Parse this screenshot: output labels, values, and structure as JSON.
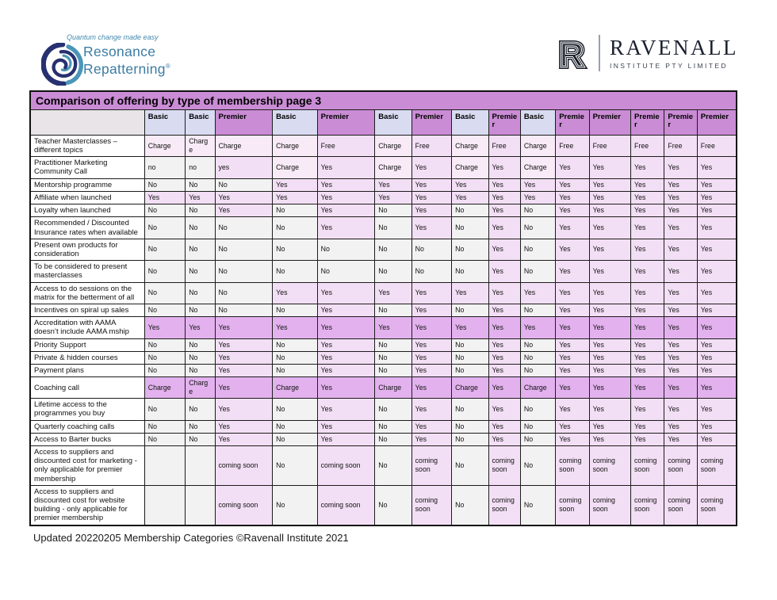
{
  "logo_left": {
    "tagline": "Quantum change made easy",
    "name_line1": "Resonance",
    "name_line2": "Repatterning",
    "registered_mark": "®",
    "spiral_icon": "spiral-swirl",
    "color_teal": "#4a96b8",
    "color_navy": "#273070",
    "color_text": "#3c7ba3"
  },
  "logo_right": {
    "monogram": "R",
    "name": "RAVENALL",
    "subtitle": "INSTITUTE PTY LIMITED",
    "color_ink": "#1b2130"
  },
  "colors": {
    "title_bg": "#ca8cd5",
    "header_empty_bg": "#e8e4e7",
    "header_basic_bg": "#d9dcf1",
    "header_premier_bg": "#ca8cd5",
    "cell_no_bg": "#f3f2f2",
    "cell_yes_bg": "#f3dff5",
    "cell_charge_bg": "#f8ebf7",
    "cell_highlight_bg": "#e3b2ee"
  },
  "table": {
    "title": "Comparison of offering by type of membership page 3",
    "columns": [
      {
        "label": "Basic",
        "type": "basic"
      },
      {
        "label": "Basic",
        "type": "basic"
      },
      {
        "label": "Premier",
        "type": "premier"
      },
      {
        "label": "Basic",
        "type": "basic"
      },
      {
        "label": "Premier",
        "type": "premier"
      },
      {
        "label": "Basic",
        "type": "basic"
      },
      {
        "label": "Premier",
        "type": "premier"
      },
      {
        "label": "Basic",
        "type": "basic"
      },
      {
        "label": "Premier",
        "type": "premier"
      },
      {
        "label": "Basic",
        "type": "basic"
      },
      {
        "label": "Premier",
        "type": "premier"
      },
      {
        "label": "Premier",
        "type": "premier"
      },
      {
        "label": "Premier",
        "type": "premier"
      },
      {
        "label": "Premier",
        "type": "premier"
      },
      {
        "label": "Premier",
        "type": "premier"
      }
    ],
    "rows": [
      {
        "label": "Teacher Masterclasses – different topics",
        "highlight": false,
        "values": [
          "Charge",
          "Charge",
          "Charge",
          "Charge",
          "Free",
          "Charge",
          "Free",
          "Charge",
          "Free",
          "Charge",
          "Free",
          "Free",
          "Free",
          "Free",
          "Free"
        ]
      },
      {
        "label": "Practitioner Marketing Community Call",
        "highlight": false,
        "values": [
          "no",
          "no",
          "yes",
          "Charge",
          "Yes",
          "Charge",
          "Yes",
          "Charge",
          "Yes",
          "Charge",
          "Yes",
          "Yes",
          "Yes",
          "Yes",
          "Yes"
        ]
      },
      {
        "label": "Mentorship programme",
        "highlight": false,
        "values": [
          "No",
          "No",
          "No",
          "Yes",
          "Yes",
          "Yes",
          "Yes",
          "Yes",
          "Yes",
          "Yes",
          "Yes",
          "Yes",
          "Yes",
          "Yes",
          "Yes"
        ]
      },
      {
        "label": "Affiliate when launched",
        "highlight": false,
        "values": [
          "Yes",
          "Yes",
          "Yes",
          "Yes",
          "Yes",
          "Yes",
          "Yes",
          "Yes",
          "Yes",
          "Yes",
          "Yes",
          "Yes",
          "Yes",
          "Yes",
          "Yes"
        ]
      },
      {
        "label": "Loyalty when launched",
        "highlight": false,
        "values": [
          "No",
          "No",
          "Yes",
          "No",
          "Yes",
          "No",
          "Yes",
          "No",
          "Yes",
          "No",
          "Yes",
          "Yes",
          "Yes",
          "Yes",
          "Yes"
        ]
      },
      {
        "label": "Recommended / Discounted Insurance rates when available",
        "highlight": false,
        "values": [
          "No",
          "No",
          "No",
          "No",
          "Yes",
          "No",
          "Yes",
          "No",
          "Yes",
          "No",
          "Yes",
          "Yes",
          "Yes",
          "Yes",
          "Yes"
        ]
      },
      {
        "label": "Present own products for consideration",
        "highlight": false,
        "values": [
          "No",
          "No",
          "No",
          "No",
          "No",
          "No",
          "No",
          "No",
          "Yes",
          "No",
          "Yes",
          "Yes",
          "Yes",
          "Yes",
          "Yes"
        ]
      },
      {
        "label": "To be considered to present masterclasses",
        "highlight": false,
        "values": [
          "No",
          "No",
          "No",
          "No",
          "No",
          "No",
          "No",
          "No",
          "Yes",
          "No",
          "Yes",
          "Yes",
          "Yes",
          "Yes",
          "Yes"
        ]
      },
      {
        "label": "Access to do sessions on the matrix for the betterment of all",
        "highlight": false,
        "values": [
          "No",
          "No",
          "No",
          "Yes",
          "Yes",
          "Yes",
          "Yes",
          "Yes",
          "Yes",
          "Yes",
          "Yes",
          "Yes",
          "Yes",
          "Yes",
          "Yes"
        ]
      },
      {
        "label": "Incentives on spiral up sales",
        "highlight": false,
        "values": [
          "No",
          "No",
          "No",
          "No",
          "Yes",
          "No",
          "Yes",
          "No",
          "Yes",
          "No",
          "Yes",
          "Yes",
          "Yes",
          "Yes",
          "Yes"
        ]
      },
      {
        "label": "Accreditation with AAMA doesn’t include AAMA mship",
        "highlight": true,
        "values": [
          "Yes",
          "Yes",
          "Yes",
          "Yes",
          "Yes",
          "Yes",
          "Yes",
          "Yes",
          "Yes",
          "Yes",
          "Yes",
          "Yes",
          "Yes",
          "Yes",
          "Yes"
        ]
      },
      {
        "label": "Priority Support",
        "highlight": false,
        "values": [
          "No",
          "No",
          "Yes",
          "No",
          "Yes",
          "No",
          "Yes",
          "No",
          "Yes",
          "No",
          "Yes",
          "Yes",
          "Yes",
          "Yes",
          "Yes"
        ]
      },
      {
        "label": "Private & hidden courses",
        "highlight": false,
        "values": [
          "No",
          "No",
          "Yes",
          "No",
          "Yes",
          "No",
          "Yes",
          "No",
          "Yes",
          "No",
          "Yes",
          "Yes",
          "Yes",
          "Yes",
          "Yes"
        ]
      },
      {
        "label": "Payment plans",
        "highlight": false,
        "values": [
          "No",
          "No",
          "Yes",
          "No",
          "Yes",
          "No",
          "Yes",
          "No",
          "Yes",
          "No",
          "Yes",
          "Yes",
          "Yes",
          "Yes",
          "Yes"
        ]
      },
      {
        "label": "Coaching call",
        "highlight": true,
        "values": [
          "Charge",
          "Charge",
          "Yes",
          "Charge",
          "Yes",
          "Charge",
          "Yes",
          "Charge",
          "Yes",
          "Charge",
          "Yes",
          "Yes",
          "Yes",
          "Yes",
          "Yes"
        ]
      },
      {
        "label": "Lifetime access to the programmes you buy",
        "highlight": false,
        "values": [
          "No",
          "No",
          "Yes",
          "No",
          "Yes",
          "No",
          "Yes",
          "No",
          "Yes",
          "No",
          "Yes",
          "Yes",
          "Yes",
          "Yes",
          "Yes"
        ]
      },
      {
        "label": "Quarterly coaching calls",
        "highlight": false,
        "values": [
          "No",
          "No",
          "Yes",
          "No",
          "Yes",
          "No",
          "Yes",
          "No",
          "Yes",
          "No",
          "Yes",
          "Yes",
          "Yes",
          "Yes",
          "Yes"
        ]
      },
      {
        "label": "Access to Barter bucks",
        "highlight": false,
        "values": [
          "No",
          "No",
          "Yes",
          "No",
          "Yes",
          "No",
          "Yes",
          "No",
          "Yes",
          "No",
          "Yes",
          "Yes",
          "Yes",
          "Yes",
          "Yes"
        ]
      },
      {
        "label": "Access to suppliers and discounted cost for marketing - only applicable for premier membership",
        "highlight": false,
        "values": [
          "",
          "",
          "coming soon",
          "No",
          "coming soon",
          "No",
          "coming soon",
          "No",
          "coming soon",
          "No",
          "coming soon",
          "coming soon",
          "coming soon",
          "coming soon",
          "coming soon"
        ]
      },
      {
        "label": "Access to suppliers and discounted cost for website building - only applicable for premier membership",
        "highlight": false,
        "values": [
          "",
          "",
          "coming soon",
          "No",
          "coming soon",
          "No",
          "coming soon",
          "No",
          "coming soon",
          "No",
          "coming soon",
          "coming soon",
          "coming soon",
          "coming soon",
          "coming soon"
        ]
      }
    ]
  },
  "footer": "Updated 20220205 Membership Categories ©Ravenall Institute 2021"
}
